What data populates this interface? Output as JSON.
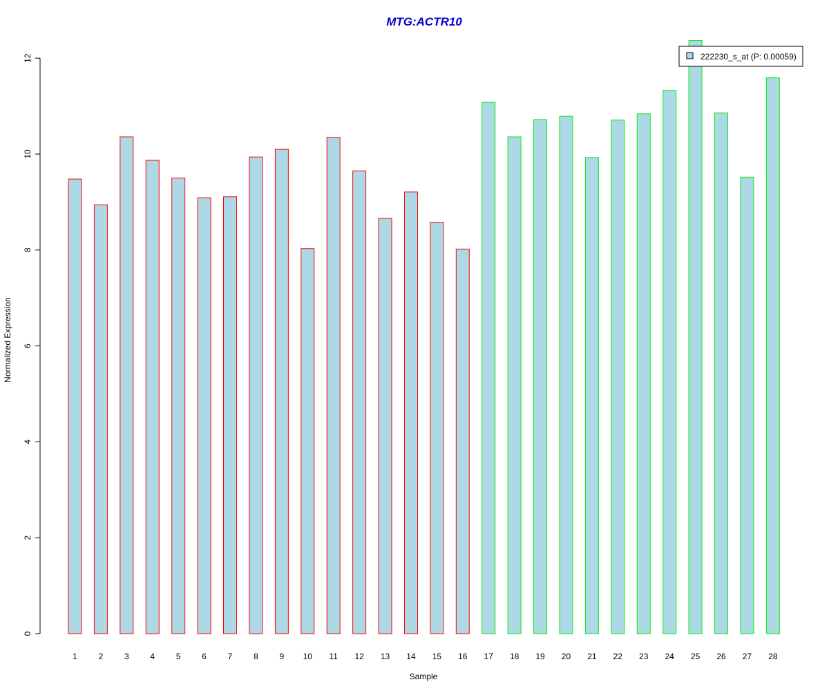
{
  "chart_data": {
    "type": "bar",
    "title": "MTG:ACTR10",
    "xlabel": "Sample",
    "ylabel": "Normalized Expression",
    "categories": [
      "1",
      "2",
      "3",
      "4",
      "5",
      "6",
      "7",
      "8",
      "9",
      "10",
      "11",
      "12",
      "13",
      "14",
      "15",
      "16",
      "17",
      "18",
      "19",
      "20",
      "21",
      "22",
      "23",
      "24",
      "25",
      "26",
      "27",
      "28"
    ],
    "series": [
      {
        "name": "222230_s_at (P: 0.00059)",
        "values": [
          9.48,
          8.94,
          10.36,
          9.87,
          9.5,
          9.09,
          9.11,
          9.94,
          10.1,
          8.03,
          10.35,
          9.65,
          8.66,
          9.21,
          8.58,
          8.02,
          11.08,
          10.36,
          10.72,
          10.79,
          9.93,
          10.71,
          10.84,
          11.33,
          12.37,
          10.86,
          9.52,
          11.59
        ]
      }
    ],
    "yticks": [
      0,
      2,
      4,
      6,
      8,
      10,
      12
    ],
    "ylim": [
      0,
      12.4
    ],
    "legend_position": "top-right",
    "grid": false,
    "colors": {
      "title": "#0000CC",
      "bar_fill": "#ADD8E6",
      "group1_border": "#FF0000",
      "group2_border": "#00EE00"
    }
  }
}
